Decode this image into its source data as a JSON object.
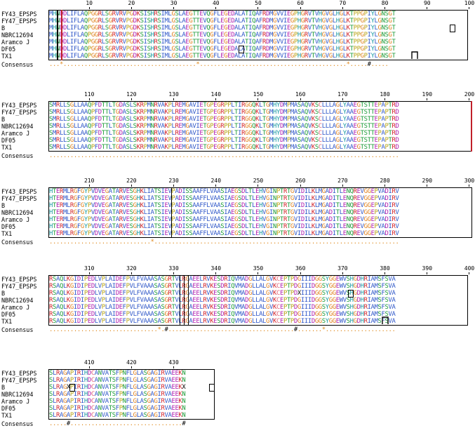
{
  "alignment": {
    "consensus_label": "Consensus",
    "blocks": [
      {
        "ticks": [
          "10",
          "20",
          "30",
          "40",
          "50",
          "60",
          "70",
          "80",
          "90",
          "100"
        ],
        "rows": [
          {
            "name": "FY43_EPSPS",
            "seq": "MHNDDLIFLAQPGGRLSGRVRVPGDKSISHRSIMLGSLAEGTTEVQGFLEGEDALATIQAFRDMGVVIEGPHGRVTVHGVGLHGLKTPPGPIYLGNSGT"
          },
          {
            "name": "FY47_EPSPS",
            "seq": "MHNDDLIFLAQPGGRLSGRVRVPGDKSISHRSIMLGSLAEGTTEVQGFLEGEDALATIQAFRDMGVVIEGPHGRVTVHGVGLHGLKTPPGPIYLGNSGT"
          },
          {
            "name": "B",
            "seq": "MHNDDLIFLAQPGGRLSGRVRVPGDKSISHRSIMLGSLAEGTTEVQGFLEGEDALATIQAFRDMGVVIEGPHGRVTVHGVGLHGLKTPPGPIYLGNSGT"
          },
          {
            "name": "NBRC12694",
            "seq": "MHNDDLIFLAQPGGRLSGRVRVPGDKSISHRSIMLGSLAEGTTEVQGFLEGEDALATIQAFRDMGVVIEGPHGRVTVHGVGLHGLKTPPGPIYLGNSGT"
          },
          {
            "name": "Aramco J",
            "seq": "MHNDDLIFLAQPGGRLSGRVRVPGDKSISHRSIMLGSLAEGTTEVQGFLEGEDALATIQAFRDMGVVIEGPHGRVTVHGVGLHGLKTPPGPIYLGNSGT"
          },
          {
            "name": "DF05",
            "seq": "MHNDDLIFLAQPGGRLSGRVRVPGDKSISHRSIMLGSLAEGTTEVQGFLEGEDALATIQAFRDMGVVIEGPHGRVTVHGVGLHGLKTPPGPIYLGNSGT"
          },
          {
            "name": "TX1",
            "seq": "MHNDDLIFLAQPGGRLSGRVRVPGDKSISHRSIMLGSLAEGTTEVQGFLEGEDALATIQAFRDMGVVIEGPHGRVTVHGVGLHGLKTPPGPIYLGNSGT"
          }
        ],
        "consensus": "...*......................................*..........................................*.....#....."
      },
      {
        "ticks": [
          "110",
          "120",
          "130",
          "140",
          "150",
          "160",
          "170",
          "180",
          "190",
          "200"
        ],
        "rows": [
          {
            "name": "FY43_EPSPS",
            "seq": "SMRLLSGLLAAQPFDTTLTGDASLSKRPMNRVAKPLREMGAVIETGPEGRPPLTIRGGQKLTGMHYDMPMASAQVKSCLLLAGLYAAEGTSTTEPAPTRD"
          },
          {
            "name": "FY47_EPSPS",
            "seq": "SMRLLSGLLAAQPFDTTLTGDASLSKRPMNRVAKPLREMGAVIETGPEGRPPLTIRGGQKLTGMHYDMPMASAQVKSCLLLAGLYAAEGTSTTEPAPTRD"
          },
          {
            "name": "B",
            "seq": "SMRLLSGLLAAQPFDTTLTGDASLSKRPMNRVAKPLREMGAVIETGPEGRPPLTIRGGQKLTGMHYDMPMASAQVKSCLLLAGLYAAEGTSTTEPAPTRD"
          },
          {
            "name": "NBRC12694",
            "seq": "SMRLLSGLLAAQPFDTTLTGDASLSKRPMNRVAKPLREMGAVIETGPEGRPPLTIRGGQKLTGMHYDMPMASAQVKSCLLLAGLYAAEGTSTTEPAPTRD"
          },
          {
            "name": "Aramco J",
            "seq": "SMRLLSGLLAAQPFDTTLTGDASLSKRPMNRVAKPLREMGAVIETGPEGRPPLTIRGGQKLTGMHYDMPMASAQVKSCLLLAGLYAAEGTSTTEPAPTRD"
          },
          {
            "name": "DF05",
            "seq": "SMRLLSGLLAAQPFDTTLTGDASLSKRPMNRVAKPLREMGAVIETGPEGRPPLTIRGGQKLTGMHYDMPMASAQVKSCLLLAGLYAAEGTSTTEPAPTRD"
          },
          {
            "name": "TX1",
            "seq": "SMRLLSGLLAAQPFDTTLTGDASLSKRPMNRVAKPLREMGAVIETGPEGRPPLTIRGGQKLTGMHYDMPMASAQVKSCLLLAGLYAAEGTSTTEPAPTRD"
          }
        ],
        "consensus": "...................................................................................................."
      },
      {
        "ticks": [
          "210",
          "220",
          "230",
          "240",
          "250",
          "260",
          "270",
          "280",
          "290",
          "300"
        ],
        "rows": [
          {
            "name": "FY43_EPSPS",
            "seq": "HTERMLRGFGYPVDVEGATARVESGHKLIATSIEVPADISSAAFFLVAASIAEGSDLTLEHVGINPTRTGVIDILKLMGADITLENQREVGGEPVADIRV"
          },
          {
            "name": "FY47_EPSPS",
            "seq": "HTERMLRGFGYPVDVEGATARVESGHKLIATSIEVPADISSAAFFLVAASIAEGSDLTLEHVGINPTRTGVIDILKLMGADITLENQREVGGEPVADIRV"
          },
          {
            "name": "B",
            "seq": "HTERMLRGFGYPVDVEGATARVESGHKLIATSIEVPADISSAAFFLVAASIAEGSDLTLEHVGINPTRTGVIDILKLMGADITLENQREVGGEPVADIRV"
          },
          {
            "name": "NBRC12694",
            "seq": "HTERMLRGFGYPVDVEGATARVESGHKLIATSIEVPADISSAAFFLVAASIAEGSDLTLEHVGINPTRTGVIDILKLMGADITLENQREVGGEPVADIRV"
          },
          {
            "name": "Aramco J",
            "seq": "HTERMLRGFGYPVDVEGATARVESGHKLIATSIEVPADISSAAFFLVAASIAEGSDLTLEHVGINPTRTGVIDILKLMGADITLENQREVGGEPVADIRV"
          },
          {
            "name": "DF05",
            "seq": "HTERMLRGFGYPVDVEGATARVESGHKLIATSIEVPADISSAAFFLVAASIAEGSDLTLEHVGINPTRTGVIDILKLMGADITLENQREVGGEPVADIRV"
          },
          {
            "name": "TX1",
            "seq": "HTERMLRGFGYPVDVEGATARVESGHKLIATSIEVPADISSAAFFLVAASIAEGSDLTLEHVGINPTRTGVIDILKLMGADITLENQREVGGEPVADIRV"
          }
        ],
        "consensus": ".............................*......................................................................"
      },
      {
        "ticks": [
          "310",
          "320",
          "330",
          "340",
          "350",
          "360",
          "370",
          "380",
          "390",
          "400"
        ],
        "rows": [
          {
            "name": "FY43_EPSPS",
            "seq": "RSAQLKGIDIPEDLVPLAIDEFPVLFVAAASASGRTVLRGAEELRVKESDRIQVMADGLLALGVKCEPTPDGIIIDGGSYGGEWVSHGDHRIAMSFSVA"
          },
          {
            "name": "FY47_EPSPS",
            "seq": "RSAQLKGIDIPEDLVPLAIDEFPVLFVAAASASGRTVLRGAEELRVKESDRIQVMADGLLALGVKCEPTPDGIIIDGGSYGGEWVSHGDHRIAMSFSVA"
          },
          {
            "name": "B",
            "seq": "RSAQLKGIDIPEDLVPLAIDEFPVLFVAAASASGRTVLRGAEELRVKESDRIQVMADGLLALGVKCEPTPDXIIIDGGSYGGEWVSHGDHRIAMSFSVA"
          },
          {
            "name": "NBRC12694",
            "seq": "RSAQLKGIDIPEDLVPLAIDEFPVLFVAAASASGRTVLRGAEELRVKESDRIQVMADGLLALGVKCEPTPDGIIIDGGSYGGEWVSHGDHRIAMSFSVA"
          },
          {
            "name": "Aramco J",
            "seq": "RSAQLKGIDIPEDLVPLAIDEFPVLFVAAASASGRTVLRGAEELRVKESDRIQVMADGLLALGVKCEPTPDGIIIDGGSYGGEWVSHGDHRIAMSFSVA"
          },
          {
            "name": "DF05",
            "seq": "RSAQLKGIDIPEDLVPLAIDEFPVLFVAAASASGRTVLRGAEELRVKESDRIQVMADGLLALGVKCEPTPDGIIIDGGSYGGEWVSHGDHRIAMSFSVA"
          },
          {
            "name": "TX1",
            "seq": "RSAQLKGIDIPEDLVPLAIDEFPVLFVAAASASGRTVLRGAEELRVKESDRIQVMADGLLALGVKCEPTPDGIIIDGGSYGGEWVSHGDHRIAMSFSVA"
          }
        ],
        "consensus": "...............................*.#....................................#.......*...................."
      },
      {
        "ticks": [
          "410",
          "420",
          "430"
        ],
        "rows": [
          {
            "name": "FY43_EPSPS",
            "seq": "SLRAGAPIRIHDCANVATSFPNFLGLASGAGIRVAEEKN"
          },
          {
            "name": "FY47_EPSPS",
            "seq": "SLRAGAPIRIHDCANVATSFPNFLGLASGAGIRVAEEKN"
          },
          {
            "name": "B",
            "seq": "SLRAGXPIRIHDCANVATSFPNFLGLASGAGIRVAEEKX"
          },
          {
            "name": "NBRC12694",
            "seq": "SLRAGAPIRIHDCANVATSFPNFLGLASGAGIRVAEEKN"
          },
          {
            "name": "Aramco J",
            "seq": "SLRAGAPIRIHDCANVATSFPNFLGLASGAGIRVAEEKN"
          },
          {
            "name": "DF05",
            "seq": "SLRAGAPIRIHDCANVATSFPNFLGLASGAGIRVAEEKN"
          },
          {
            "name": "TX1",
            "seq": "SLRAGAPIRIHDCANVATSFPNFLGLASGAGIRVAEEKN"
          }
        ],
        "consensus": ".....#................................#"
      }
    ]
  },
  "colors": {
    "hydrophobic": "#2f57c8",
    "positive": "#d3242a",
    "negative": "#b020b0",
    "polar": "#1a9a36",
    "glycine": "#e0801c",
    "proline": "#b8a416",
    "aromatic": "#1a9aa3",
    "cysteine": "#e2647a",
    "consensus": "#e08a1e",
    "frame": "#000000"
  }
}
